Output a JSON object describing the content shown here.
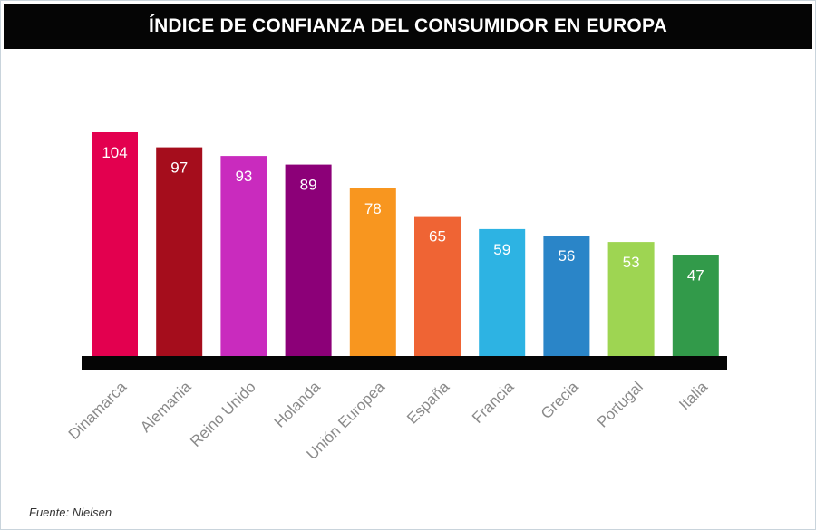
{
  "chart_data": {
    "type": "bar",
    "title": "ÍNDICE DE CONFIANZA DEL CONSUMIDOR EN EUROPA",
    "categories": [
      "Dinamarca",
      "Alemania",
      "Reino Unido",
      "Holanda",
      "Unión Europea",
      "España",
      "Francia",
      "Grecia",
      "Portugal",
      "Italia"
    ],
    "values": [
      104,
      97,
      93,
      89,
      78,
      65,
      59,
      56,
      53,
      47
    ],
    "colors": [
      "#e3004f",
      "#a50d1c",
      "#c92bbe",
      "#8c0078",
      "#f8961f",
      "#ef6434",
      "#2db3e3",
      "#2a85c8",
      "#9ed552",
      "#329a4a"
    ],
    "ylim": [
      0,
      104
    ],
    "grid": false,
    "value_labels": "inside-top"
  },
  "source": "Fuente: Nielsen"
}
